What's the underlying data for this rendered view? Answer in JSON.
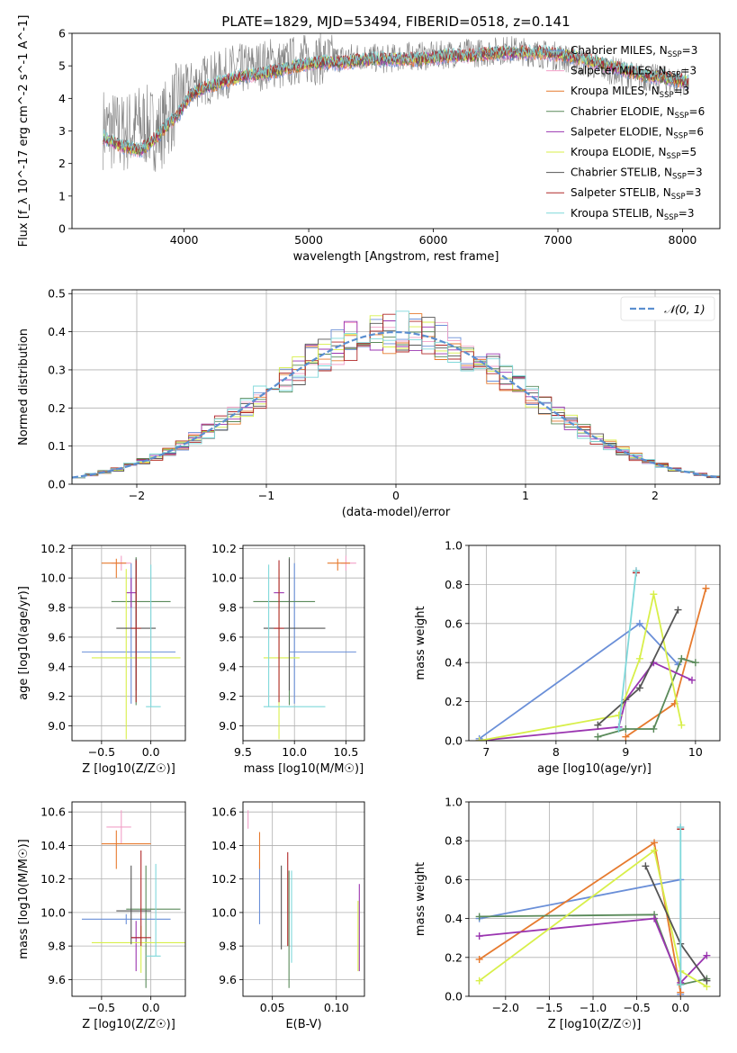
{
  "figure": {
    "title": "PLATE=1829, MJD=53494, FIBERID=0518, z=0.141",
    "colors": {
      "Chabrier MILES": "#6a8fd8",
      "Salpeter MILES": "#f2a0c8",
      "Kroupa MILES": "#e67a2e",
      "Chabrier ELODIE": "#5a8a5a",
      "Salpeter ELODIE": "#9a35b0",
      "Kroupa ELODIE": "#d8ef4a",
      "Chabrier STELIB": "#555555",
      "Salpeter STELIB": "#b02828",
      "Kroupa STELIB": "#7fd8da"
    }
  },
  "chart_data": [
    {
      "id": "spectrum",
      "type": "line",
      "xlabel": "wavelength [Angstrom, rest frame]",
      "ylabel": "Flux [f_λ 10^-17 erg cm^-2 s^-1 A^-1]",
      "xlim": [
        3100,
        8300
      ],
      "ylim": [
        0,
        6
      ],
      "xticks": [
        4000,
        5000,
        6000,
        7000,
        8000
      ],
      "yticks": [
        0,
        1,
        2,
        3,
        4,
        5,
        6
      ],
      "grid": false,
      "legend_position": "top-right",
      "legend": [
        {
          "name": "Chabrier MILES",
          "nssp": "3"
        },
        {
          "name": "Salpeter MILES",
          "nssp": "3"
        },
        {
          "name": "Kroupa MILES",
          "nssp": "3"
        },
        {
          "name": "Chabrier ELODIE",
          "nssp": "6"
        },
        {
          "name": "Salpeter ELODIE",
          "nssp": "6"
        },
        {
          "name": "Kroupa ELODIE",
          "nssp": "5"
        },
        {
          "name": "Chabrier STELIB",
          "nssp": "3"
        },
        {
          "name": "Salpeter STELIB",
          "nssp": "3"
        },
        {
          "name": "Kroupa STELIB",
          "nssp": "3"
        }
      ],
      "data_series": {
        "name": "data",
        "color": "#808080",
        "x": [
          3350,
          3500,
          3650,
          3800,
          3900,
          4000,
          4100,
          4200,
          4300,
          4400,
          4500,
          4600,
          4700,
          4800,
          4900,
          5000,
          5200,
          5400,
          5600,
          5800,
          6000,
          6200,
          6400,
          6600,
          6800,
          7000,
          7200,
          7400,
          7600,
          7800,
          8050
        ],
        "y": [
          3.1,
          2.9,
          3.2,
          3.0,
          3.6,
          4.2,
          4.5,
          4.6,
          4.7,
          4.9,
          4.9,
          5.0,
          5.1,
          5.0,
          5.2,
          5.2,
          5.2,
          5.3,
          5.2,
          5.3,
          5.3,
          5.4,
          5.4,
          5.5,
          5.4,
          5.3,
          5.1,
          4.9,
          4.7,
          4.6,
          4.5
        ]
      },
      "model_series": {
        "x": [
          3350,
          3450,
          3550,
          3650,
          3750,
          3850,
          3950,
          4050,
          4150,
          4300,
          4500,
          4700,
          4900,
          5100,
          5300,
          5500,
          5700,
          5900,
          6100,
          6300,
          6500,
          6700,
          6900,
          7100,
          7300,
          7500,
          7700,
          7900,
          8050
        ],
        "y": [
          2.8,
          2.6,
          2.5,
          2.4,
          2.7,
          3.1,
          3.5,
          4.1,
          4.3,
          4.5,
          4.7,
          4.8,
          5.0,
          5.1,
          5.1,
          5.2,
          5.2,
          5.2,
          5.3,
          5.3,
          5.4,
          5.4,
          5.4,
          5.3,
          5.1,
          4.9,
          4.7,
          4.6,
          4.5
        ]
      }
    },
    {
      "id": "residuals",
      "type": "line",
      "xlabel": "(data-model)/error",
      "ylabel": "Normed distribution",
      "xlim": [
        -2.5,
        2.5
      ],
      "ylim": [
        0,
        0.51
      ],
      "xticks": [
        -2,
        -1,
        0,
        1,
        2
      ],
      "yticks": [
        0.0,
        0.1,
        0.2,
        0.3,
        0.4,
        0.5
      ],
      "grid": true,
      "legend_position": "top-right",
      "legend": [
        {
          "name": "𝒩(0, 1)"
        }
      ],
      "normal_curve": {
        "mu": 0,
        "sigma": 1,
        "color": "#5b8fd0"
      }
    },
    {
      "id": "age_vs_Z",
      "type": "scatter",
      "xlabel": "Z [log10(Z/Z☉)]",
      "ylabel": "age [log10(age/yr)]",
      "xlim": [
        -0.8,
        0.35
      ],
      "ylim": [
        8.9,
        10.22
      ],
      "xticks": [
        -0.5,
        0.0
      ],
      "yticks": [
        9.0,
        9.2,
        9.4,
        9.6,
        9.8,
        10.0,
        10.2
      ],
      "grid": true,
      "series": [
        {
          "name": "Chabrier MILES",
          "x": -0.2,
          "xerr": [
            0.5,
            0.45
          ],
          "y": 9.5,
          "yerr": [
            0.35,
            0.6
          ]
        },
        {
          "name": "Salpeter MILES",
          "x": -0.3,
          "xerr": [
            0.1,
            0.1
          ],
          "y": 10.1,
          "yerr": [
            0.05,
            0.05
          ]
        },
        {
          "name": "Kroupa MILES",
          "x": -0.35,
          "xerr": [
            0.15,
            0.1
          ],
          "y": 10.1,
          "yerr": [
            0.1,
            0.03
          ]
        },
        {
          "name": "Chabrier ELODIE",
          "x": -0.15,
          "xerr": [
            0.25,
            0.35
          ],
          "y": 9.84,
          "yerr": [
            0.7,
            0.3
          ]
        },
        {
          "name": "Salpeter ELODIE",
          "x": -0.2,
          "xerr": [
            0.05,
            0.05
          ],
          "y": 9.9,
          "yerr": [
            0.1,
            0.1
          ]
        },
        {
          "name": "Kroupa ELODIE",
          "x": -0.25,
          "xerr": [
            0.35,
            0.55
          ],
          "y": 9.46,
          "yerr": [
            0.55,
            0.6
          ]
        },
        {
          "name": "Chabrier STELIB",
          "x": -0.15,
          "xerr": [
            0.2,
            0.2
          ],
          "y": 9.66,
          "yerr": [
            0.42,
            0.47
          ]
        },
        {
          "name": "Salpeter STELIB",
          "x": -0.15,
          "xerr": [
            0.05,
            0.05
          ],
          "y": 9.66,
          "yerr": [
            0.5,
            0.46
          ]
        },
        {
          "name": "Kroupa STELIB",
          "x": 0.0,
          "xerr": [
            0.05,
            0.1
          ],
          "y": 9.13,
          "yerr": [
            0.0,
            0.96
          ]
        }
      ]
    },
    {
      "id": "age_vs_mass",
      "type": "scatter",
      "xlabel": "mass [log10(M/M☉)]",
      "ylabel": "",
      "xlim": [
        9.5,
        10.68
      ],
      "ylim": [
        8.9,
        10.22
      ],
      "xticks": [
        9.5,
        10.0,
        10.5
      ],
      "yticks": [
        9.0,
        9.2,
        9.4,
        9.6,
        9.8,
        10.0,
        10.2
      ],
      "grid": true,
      "series": [
        {
          "name": "Chabrier MILES",
          "x": 10.0,
          "xerr": [
            0.05,
            0.6
          ],
          "y": 9.5,
          "yerr": [
            0.35,
            0.6
          ]
        },
        {
          "name": "Salpeter MILES",
          "x": 10.5,
          "xerr": [
            0.05,
            0.1
          ],
          "y": 10.1,
          "yerr": [
            0.05,
            0.05
          ]
        },
        {
          "name": "Kroupa MILES",
          "x": 10.42,
          "xerr": [
            0.1,
            0.12
          ],
          "y": 10.1,
          "yerr": [
            0.05,
            0.03
          ]
        },
        {
          "name": "Chabrier ELODIE",
          "x": 9.95,
          "xerr": [
            0.35,
            0.25
          ],
          "y": 9.84,
          "yerr": [
            0.7,
            0.3
          ]
        },
        {
          "name": "Salpeter ELODIE",
          "x": 9.85,
          "xerr": [
            0.05,
            0.05
          ],
          "y": 9.9,
          "yerr": [
            0.1,
            0.1
          ]
        },
        {
          "name": "Kroupa ELODIE",
          "x": 9.85,
          "xerr": [
            0.15,
            0.2
          ],
          "y": 9.46,
          "yerr": [
            0.55,
            0.6
          ]
        },
        {
          "name": "Chabrier STELIB",
          "x": 9.95,
          "xerr": [
            0.25,
            0.35
          ],
          "y": 9.66,
          "yerr": [
            0.42,
            0.47
          ]
        },
        {
          "name": "Salpeter STELIB",
          "x": 9.85,
          "xerr": [
            0.05,
            0.05
          ],
          "y": 9.66,
          "yerr": [
            0.5,
            0.46
          ]
        },
        {
          "name": "Kroupa STELIB",
          "x": 9.75,
          "xerr": [
            0.05,
            0.55
          ],
          "y": 9.13,
          "yerr": [
            0.0,
            0.96
          ]
        }
      ]
    },
    {
      "id": "mass_weight_vs_age",
      "type": "line",
      "xlabel": "age [log10(age/yr)]",
      "ylabel": "mass weight",
      "xlim": [
        6.75,
        10.35
      ],
      "ylim": [
        0,
        1.0
      ],
      "xticks": [
        7,
        8,
        9,
        10
      ],
      "yticks": [
        0.0,
        0.2,
        0.4,
        0.6,
        0.8,
        1.0
      ],
      "grid": true,
      "series": [
        {
          "name": "Chabrier MILES",
          "x": [
            6.9,
            9.2,
            9.75
          ],
          "y": [
            0.01,
            0.6,
            0.39
          ]
        },
        {
          "name": "Salpeter MILES",
          "x": [
            9.15
          ],
          "y": [
            0.87
          ]
        },
        {
          "name": "Kroupa MILES",
          "x": [
            9.0,
            9.7,
            10.15
          ],
          "y": [
            0.02,
            0.19,
            0.78
          ]
        },
        {
          "name": "Chabrier ELODIE",
          "x": [
            8.6,
            9.0,
            9.4,
            9.8,
            10.0
          ],
          "y": [
            0.02,
            0.06,
            0.06,
            0.42,
            0.4
          ]
        },
        {
          "name": "Salpeter ELODIE",
          "x": [
            6.9,
            8.9,
            9.0,
            9.4,
            9.95
          ],
          "y": [
            0.0,
            0.07,
            0.21,
            0.4,
            0.31
          ]
        },
        {
          "name": "Kroupa ELODIE",
          "x": [
            6.9,
            8.9,
            9.2,
            9.4,
            9.8
          ],
          "y": [
            0.0,
            0.13,
            0.42,
            0.75,
            0.08
          ]
        },
        {
          "name": "Chabrier STELIB",
          "x": [
            8.6,
            9.2,
            9.75
          ],
          "y": [
            0.08,
            0.27,
            0.67
          ]
        },
        {
          "name": "Salpeter STELIB",
          "x": [
            9.15
          ],
          "y": [
            0.86
          ]
        },
        {
          "name": "Kroupa STELIB",
          "x": [
            8.9,
            9.15
          ],
          "y": [
            0.06,
            0.87
          ]
        }
      ]
    },
    {
      "id": "mass_vs_Z",
      "type": "scatter",
      "xlabel": "Z [log10(Z/Z☉)]",
      "ylabel": "mass [log10(M/M☉)]",
      "xlim": [
        -0.8,
        0.35
      ],
      "ylim": [
        9.5,
        10.66
      ],
      "xticks": [
        -0.5,
        0.0
      ],
      "yticks": [
        9.6,
        9.8,
        10.0,
        10.2,
        10.4,
        10.6
      ],
      "grid": true,
      "series": [
        {
          "name": "Chabrier MILES",
          "x": -0.25,
          "xerr": [
            0.45,
            0.45
          ],
          "y": 9.96,
          "yerr": [
            0.03,
            0.03
          ]
        },
        {
          "name": "Salpeter MILES",
          "x": -0.3,
          "xerr": [
            0.15,
            0.1
          ],
          "y": 10.51,
          "yerr": [
            0.1,
            0.1
          ]
        },
        {
          "name": "Kroupa MILES",
          "x": -0.35,
          "xerr": [
            0.15,
            0.35
          ],
          "y": 10.41,
          "yerr": [
            0.15,
            0.08
          ]
        },
        {
          "name": "Chabrier ELODIE",
          "x": -0.05,
          "xerr": [
            0.2,
            0.35
          ],
          "y": 10.02,
          "yerr": [
            0.47,
            0.26
          ]
        },
        {
          "name": "Salpeter ELODIE",
          "x": -0.15,
          "xerr": [
            0.05,
            0.05
          ],
          "y": 9.85,
          "yerr": [
            0.2,
            0.1
          ]
        },
        {
          "name": "Kroupa ELODIE",
          "x": -0.1,
          "xerr": [
            0.5,
            0.45
          ],
          "y": 9.82,
          "yerr": [
            0.18,
            0.1
          ]
        },
        {
          "name": "Chabrier STELIB",
          "x": -0.2,
          "xerr": [
            0.15,
            0.2
          ],
          "y": 10.01,
          "yerr": [
            0.2,
            0.27
          ]
        },
        {
          "name": "Salpeter STELIB",
          "x": -0.1,
          "xerr": [
            0.1,
            0.1
          ],
          "y": 9.85,
          "yerr": [
            0.05,
            0.52
          ]
        },
        {
          "name": "Kroupa STELIB",
          "x": 0.05,
          "xerr": [
            0.1,
            0.05
          ],
          "y": 9.74,
          "yerr": [
            0.0,
            0.55
          ]
        }
      ]
    },
    {
      "id": "mass_vs_ebv",
      "type": "scatter",
      "xlabel": "E(B-V)",
      "ylabel": "",
      "xlim": [
        0.027,
        0.122
      ],
      "ylim": [
        9.5,
        10.66
      ],
      "xticks": [
        0.05,
        0.1
      ],
      "yticks": [
        9.6,
        9.8,
        10.0,
        10.2,
        10.4,
        10.6
      ],
      "grid": true,
      "series": [
        {
          "name": "Chabrier MILES",
          "x": 0.04,
          "y": 10.25,
          "yerr": [
            0.32,
            0.05
          ]
        },
        {
          "name": "Salpeter MILES",
          "x": 0.031,
          "y": 10.55,
          "yerr": [
            0.05,
            0.06
          ]
        },
        {
          "name": "Kroupa MILES",
          "x": 0.04,
          "y": 10.4,
          "yerr": [
            0.14,
            0.08
          ]
        },
        {
          "name": "Chabrier ELODIE",
          "x": 0.063,
          "y": 10.0,
          "yerr": [
            0.45,
            0.25
          ]
        },
        {
          "name": "Salpeter ELODIE",
          "x": 0.118,
          "y": 9.85,
          "yerr": [
            0.2,
            0.32
          ]
        },
        {
          "name": "Kroupa ELODIE",
          "x": 0.117,
          "y": 9.85,
          "yerr": [
            0.2,
            0.22
          ]
        },
        {
          "name": "Chabrier STELIB",
          "x": 0.057,
          "y": 10.0,
          "yerr": [
            0.22,
            0.28
          ]
        },
        {
          "name": "Salpeter STELIB",
          "x": 0.062,
          "y": 10.0,
          "yerr": [
            0.2,
            0.36
          ]
        },
        {
          "name": "Kroupa STELIB",
          "x": 0.065,
          "y": 9.9,
          "yerr": [
            0.2,
            0.35
          ]
        }
      ]
    },
    {
      "id": "mass_weight_vs_Z",
      "type": "line",
      "xlabel": "Z [log10(Z/Z☉)]",
      "ylabel": "mass weight",
      "xlim": [
        -2.42,
        0.45
      ],
      "ylim": [
        0,
        1.0
      ],
      "xticks": [
        -2.0,
        -1.5,
        -1.0,
        -0.5,
        0.0
      ],
      "yticks": [
        0.0,
        0.2,
        0.4,
        0.6,
        0.8,
        1.0
      ],
      "grid": true,
      "series": [
        {
          "name": "Chabrier MILES",
          "x": [
            -2.3,
            0.0,
            0.0
          ],
          "y": [
            0.4,
            0.6,
            0.01
          ]
        },
        {
          "name": "Salpeter MILES",
          "x": [
            0.0
          ],
          "y": [
            0.87
          ]
        },
        {
          "name": "Kroupa MILES",
          "x": [
            -2.3,
            -0.3,
            0.0
          ],
          "y": [
            0.19,
            0.79,
            0.02
          ]
        },
        {
          "name": "Chabrier ELODIE",
          "x": [
            -2.3,
            -0.3,
            0.0,
            0.3
          ],
          "y": [
            0.41,
            0.42,
            0.06,
            0.09
          ]
        },
        {
          "name": "Salpeter ELODIE",
          "x": [
            -2.3,
            -0.3,
            0.0,
            0.3
          ],
          "y": [
            0.31,
            0.4,
            0.07,
            0.21
          ]
        },
        {
          "name": "Kroupa ELODIE",
          "x": [
            -2.3,
            -0.3,
            0.0,
            0.3
          ],
          "y": [
            0.08,
            0.75,
            0.13,
            0.05
          ]
        },
        {
          "name": "Chabrier STELIB",
          "x": [
            -0.4,
            0.0,
            0.3
          ],
          "y": [
            0.67,
            0.27,
            0.08
          ]
        },
        {
          "name": "Salpeter STELIB",
          "x": [
            0.0
          ],
          "y": [
            0.86
          ]
        },
        {
          "name": "Kroupa STELIB",
          "x": [
            0.0,
            0.0
          ],
          "y": [
            0.87,
            0.06
          ]
        }
      ]
    }
  ]
}
